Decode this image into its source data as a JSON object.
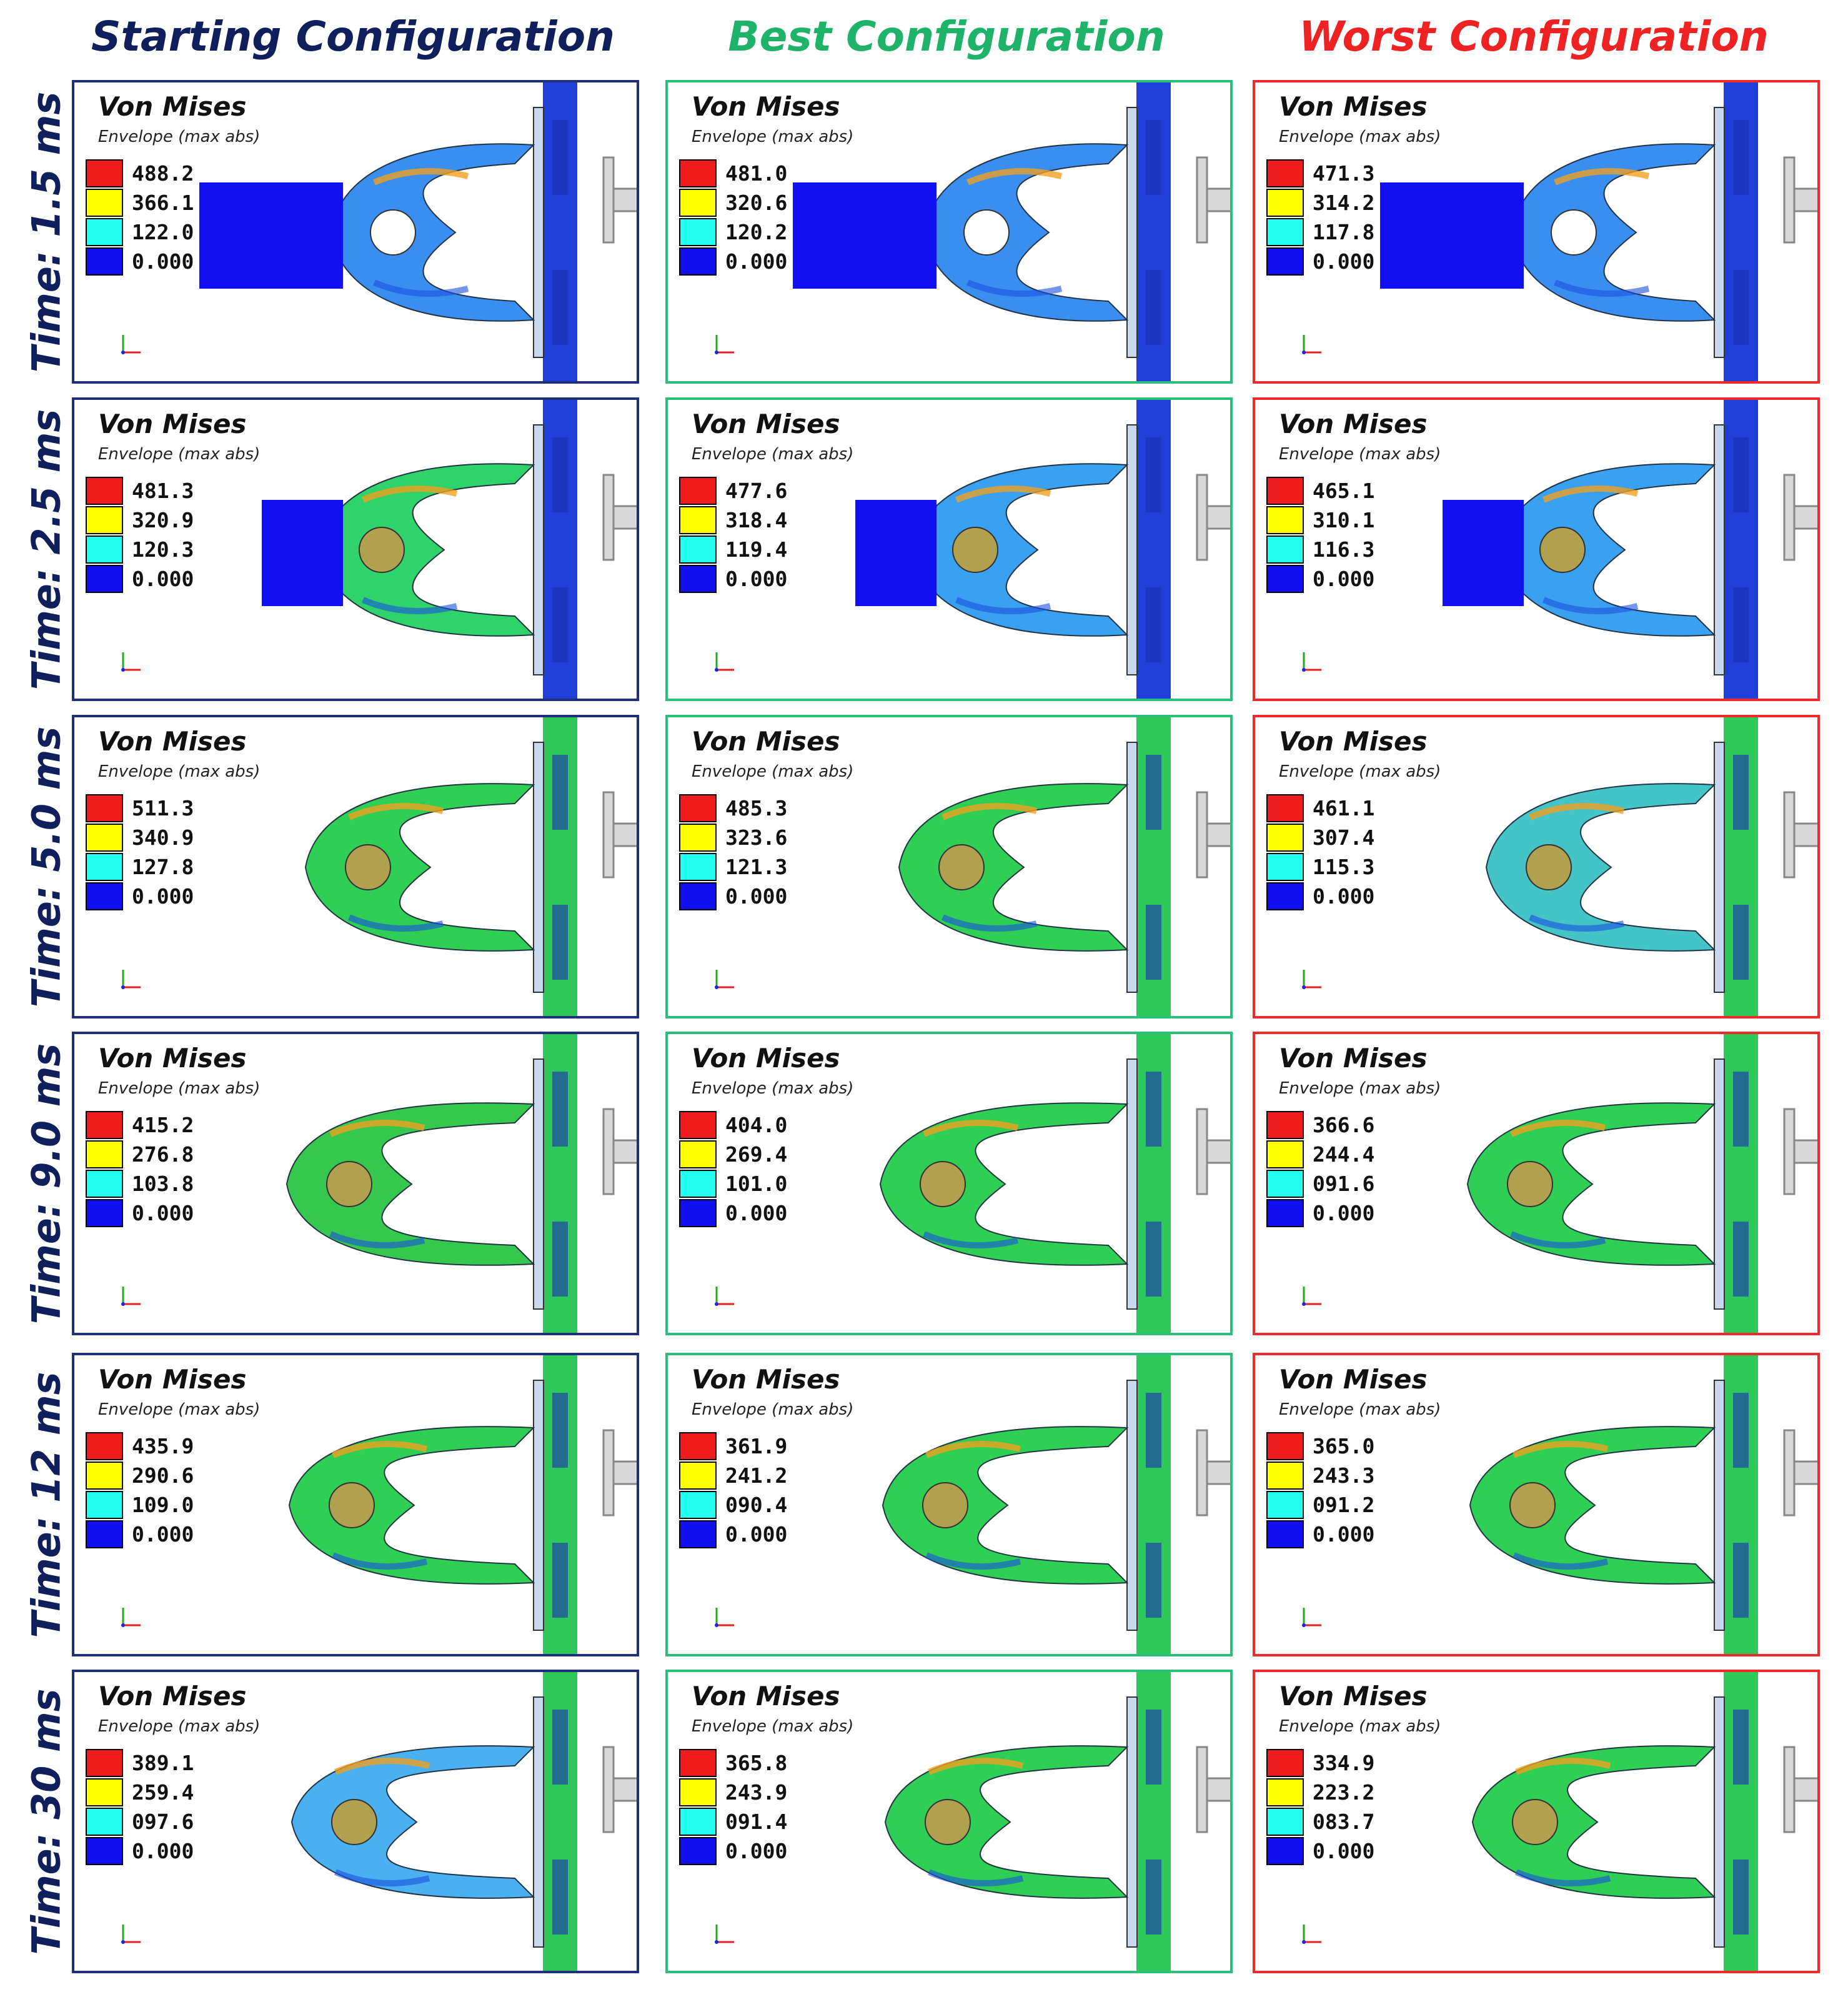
{
  "columns": [
    {
      "title": "Starting Configuration",
      "color": "#0f1f5c",
      "border": "#1f2f7a"
    },
    {
      "title": "Best Configuration",
      "color": "#1fb36a",
      "border": "#2bbf7a"
    },
    {
      "title": "Worst Configuration",
      "color": "#ee2222",
      "border": "#ee2a2a"
    }
  ],
  "panel_title": "Von Mises",
  "panel_subtitle": "Envelope (max abs)",
  "legend_colors": [
    "#ee1c1c",
    "#ffff00",
    "#22ffee",
    "#1010ee"
  ],
  "rows": [
    {
      "time": "Time: 1.5 ms",
      "legends": [
        [
          "488.2",
          "366.1",
          "122.0",
          "0.000"
        ],
        [
          "481.0",
          "320.6",
          "120.2",
          "0.000"
        ],
        [
          "471.3",
          "314.2",
          "117.8",
          "0.000"
        ]
      ]
    },
    {
      "time": "Time: 2.5 ms",
      "legends": [
        [
          "481.3",
          "320.9",
          "120.3",
          "0.000"
        ],
        [
          "477.6",
          "318.4",
          "119.4",
          "0.000"
        ],
        [
          "465.1",
          "310.1",
          "116.3",
          "0.000"
        ]
      ]
    },
    {
      "time": "Time: 5.0 ms",
      "legends": [
        [
          "511.3",
          "340.9",
          "127.8",
          "0.000"
        ],
        [
          "485.3",
          "323.6",
          "121.3",
          "0.000"
        ],
        [
          "461.1",
          "307.4",
          "115.3",
          "0.000"
        ]
      ]
    },
    {
      "time": "Time: 9.0 ms",
      "legends": [
        [
          "415.2",
          "276.8",
          "103.8",
          "0.000"
        ],
        [
          "404.0",
          "269.4",
          "101.0",
          "0.000"
        ],
        [
          "366.6",
          "244.4",
          "091.6",
          "0.000"
        ]
      ]
    },
    {
      "time": "Time: 12 ms",
      "legends": [
        [
          "435.9",
          "290.6",
          "109.0",
          "0.000"
        ],
        [
          "361.9",
          "241.2",
          "090.4",
          "0.000"
        ],
        [
          "365.0",
          "243.3",
          "091.2",
          "0.000"
        ]
      ]
    },
    {
      "time": "Time: 30 ms",
      "legends": [
        [
          "389.1",
          "259.4",
          "097.6",
          "0.000"
        ],
        [
          "365.8",
          "243.9",
          "091.4",
          "0.000"
        ],
        [
          "334.9",
          "223.2",
          "083.7",
          "0.000"
        ]
      ]
    }
  ]
}
